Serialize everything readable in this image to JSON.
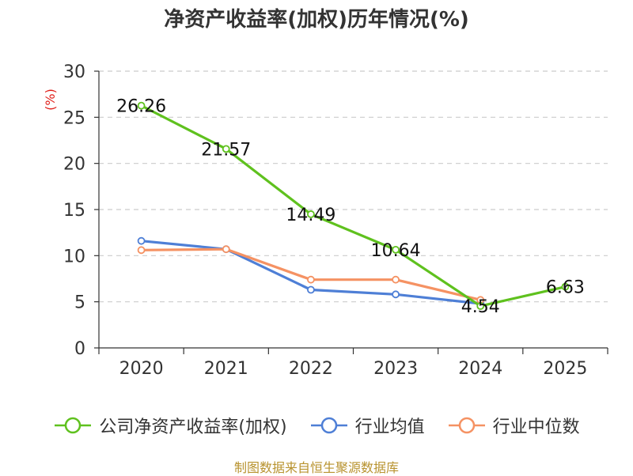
{
  "chart_data": {
    "type": "line",
    "title": "净资产收益率(加权)历年情况(%)",
    "ylabel": "(%)",
    "xlabel": "",
    "ylim": [
      0,
      30
    ],
    "yticks": [
      0,
      5,
      10,
      15,
      20,
      25,
      30
    ],
    "grid": true,
    "legend_position": "bottom",
    "categories": [
      "2020",
      "2021",
      "2022",
      "2023",
      "2024",
      "2025"
    ],
    "series": [
      {
        "name": "公司净资产收益率(加权)",
        "color": "#5fc11e",
        "values": [
          26.26,
          21.57,
          14.49,
          10.64,
          4.54,
          6.63
        ],
        "labels": [
          "26.26",
          "21.57",
          "14.49",
          "10.64",
          "4.54",
          "6.63"
        ]
      },
      {
        "name": "行业均值",
        "color": "#4e7fd6",
        "values": [
          11.6,
          10.7,
          6.3,
          5.8,
          4.8,
          null
        ]
      },
      {
        "name": "行业中位数",
        "color": "#f59263",
        "values": [
          10.6,
          10.7,
          7.4,
          7.4,
          5.2,
          null
        ]
      }
    ],
    "source": "制图数据来自恒生聚源数据库"
  }
}
